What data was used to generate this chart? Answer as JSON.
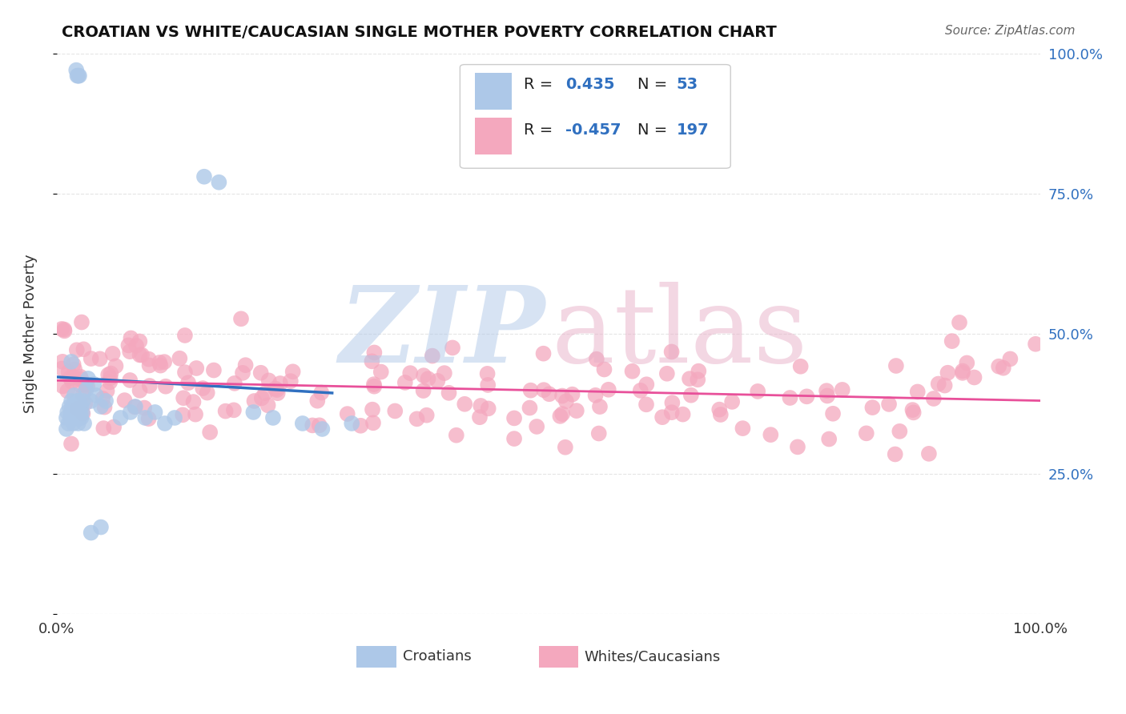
{
  "title": "CROATIAN VS WHITE/CAUCASIAN SINGLE MOTHER POVERTY CORRELATION CHART",
  "source": "Source: ZipAtlas.com",
  "ylabel": "Single Mother Poverty",
  "legend_croatian": "Croatians",
  "legend_white": "Whites/Caucasians",
  "R_croatian": 0.435,
  "N_croatian": 53,
  "R_white": -0.457,
  "N_white": 197,
  "color_croatian": "#adc8e8",
  "color_white": "#f4a8be",
  "color_line_croatian": "#3070c0",
  "color_line_white": "#e8509a",
  "background": "#ffffff",
  "grid_color": "#cccccc",
  "right_tick_color": "#3070c0",
  "legend_text_color": "#222222",
  "legend_value_color": "#3070c0",
  "title_color": "#111111",
  "source_color": "#666666"
}
